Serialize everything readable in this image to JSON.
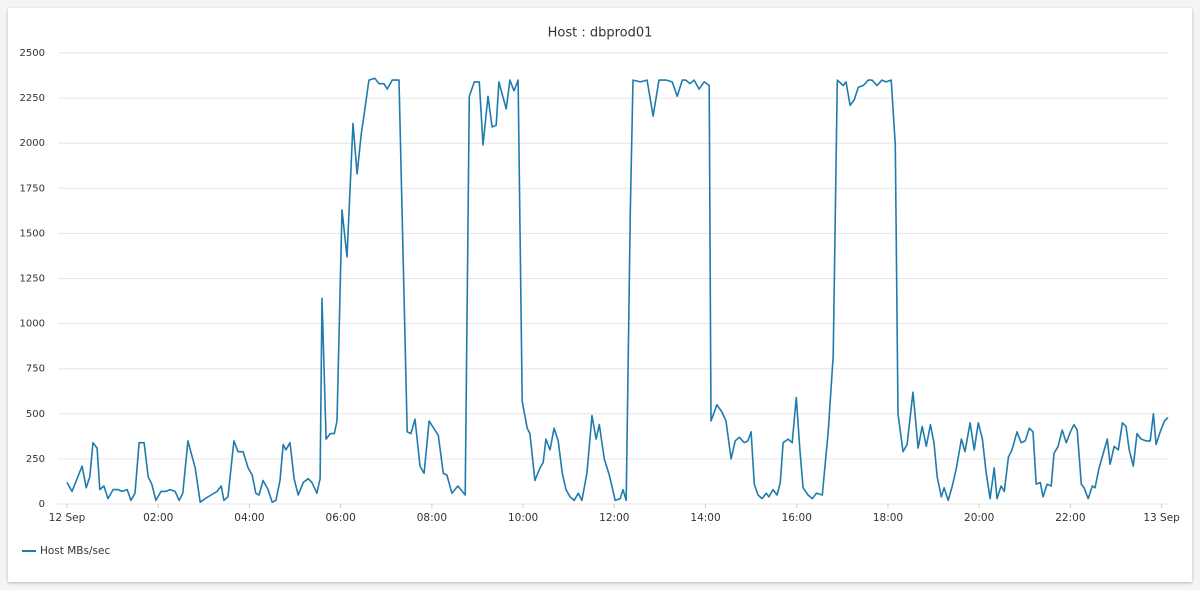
{
  "chart_data": {
    "type": "line",
    "title": "Host : dbprod01",
    "xlim": [
      0,
      24.14
    ],
    "xticks": [
      {
        "value": 0,
        "label": "12 Sep"
      },
      {
        "value": 2,
        "label": "02:00"
      },
      {
        "value": 4,
        "label": "04:00"
      },
      {
        "value": 6,
        "label": "06:00"
      },
      {
        "value": 8,
        "label": "08:00"
      },
      {
        "value": 10,
        "label": "10:00"
      },
      {
        "value": 12,
        "label": "12:00"
      },
      {
        "value": 14,
        "label": "14:00"
      },
      {
        "value": 16,
        "label": "16:00"
      },
      {
        "value": 18,
        "label": "18:00"
      },
      {
        "value": 20,
        "label": "20:00"
      },
      {
        "value": 22,
        "label": "22:00"
      },
      {
        "value": 24,
        "label": "13 Sep"
      }
    ],
    "ylim": [
      0,
      2500
    ],
    "yticks": [
      0,
      250,
      500,
      750,
      1000,
      1250,
      1500,
      1750,
      2000,
      2250,
      2500
    ],
    "grid": true,
    "legend": "bottom-left",
    "x": [
      0,
      0.11,
      0.33,
      0.42,
      0.5,
      0.57,
      0.66,
      0.72,
      0.81,
      0.9,
      1.01,
      1.12,
      1.21,
      1.32,
      1.4,
      1.49,
      1.58,
      1.69,
      1.78,
      1.86,
      1.95,
      2.06,
      2.17,
      2.26,
      2.37,
      2.46,
      2.54,
      2.65,
      2.81,
      2.92,
      3.03,
      3.16,
      3.29,
      3.38,
      3.44,
      3.53,
      3.66,
      3.75,
      3.86,
      3.97,
      4.06,
      4.14,
      4.21,
      4.3,
      4.41,
      4.5,
      4.58,
      4.67,
      4.74,
      4.8,
      4.89,
      4.98,
      5.07,
      5.18,
      5.29,
      5.37,
      5.48,
      5.55,
      5.59,
      5.68,
      5.77,
      5.86,
      5.92,
      6.03,
      6.14,
      6.27,
      6.36,
      6.45,
      6.51,
      6.62,
      6.75,
      6.84,
      6.95,
      7.02,
      7.13,
      7.28,
      7.46,
      7.54,
      7.63,
      7.74,
      7.83,
      7.94,
      8.14,
      8.25,
      8.33,
      8.44,
      8.57,
      8.73,
      8.82,
      8.93,
      9.04,
      9.12,
      9.23,
      9.32,
      9.41,
      9.47,
      9.63,
      9.71,
      9.8,
      9.89,
      9.98,
      10.09,
      10.15,
      10.26,
      10.37,
      10.44,
      10.5,
      10.59,
      10.68,
      10.77,
      10.86,
      10.94,
      11.03,
      11.12,
      11.21,
      11.29,
      11.4,
      11.51,
      11.6,
      11.67,
      11.78,
      11.89,
      12.02,
      12.13,
      12.19,
      12.26,
      12.35,
      12.41,
      12.57,
      12.72,
      12.85,
      12.98,
      13.14,
      13.27,
      13.38,
      13.49,
      13.57,
      13.66,
      13.75,
      13.86,
      13.97,
      14.08,
      14.12,
      14.25,
      14.36,
      14.45,
      14.56,
      14.65,
      14.74,
      14.85,
      14.93,
      15,
      15.07,
      15.15,
      15.24,
      15.33,
      15.39,
      15.48,
      15.57,
      15.64,
      15.7,
      15.81,
      15.9,
      15.99,
      16.07,
      16.14,
      16.25,
      16.34,
      16.43,
      16.56,
      16.69,
      16.8,
      16.89,
      17.02,
      17.08,
      17.17,
      17.26,
      17.35,
      17.46,
      17.57,
      17.65,
      17.76,
      17.87,
      17.96,
      18.07,
      18.16,
      18.22,
      18.33,
      18.42,
      18.55,
      18.66,
      18.75,
      18.84,
      18.93,
      19.01,
      19.08,
      19.17,
      19.23,
      19.32,
      19.41,
      19.5,
      19.61,
      19.69,
      19.8,
      19.89,
      19.98,
      20.07,
      20.15,
      20.24,
      20.33,
      20.39,
      20.48,
      20.55,
      20.64,
      20.72,
      20.83,
      20.92,
      21.01,
      21.1,
      21.18,
      21.25,
      21.34,
      21.4,
      21.49,
      21.58,
      21.64,
      21.73,
      21.82,
      21.91,
      22,
      22.08,
      22.15,
      22.24,
      22.3,
      22.39,
      22.48,
      22.54,
      22.63,
      22.72,
      22.81,
      22.87,
      22.96,
      23.05,
      23.14,
      23.22,
      23.29,
      23.38,
      23.46,
      23.55,
      23.66,
      23.75,
      23.82,
      23.88,
      23.97,
      24.06,
      24.14
    ],
    "series": [
      {
        "name": "Host MBs/sec",
        "color": "#1f7bad",
        "values": [
          120,
          70,
          210,
          90,
          150,
          340,
          310,
          80,
          100,
          30,
          80,
          80,
          70,
          80,
          20,
          60,
          340,
          340,
          150,
          110,
          20,
          70,
          70,
          80,
          70,
          20,
          60,
          350,
          200,
          10,
          30,
          50,
          70,
          100,
          20,
          40,
          350,
          290,
          290,
          200,
          160,
          60,
          50,
          130,
          80,
          10,
          20,
          130,
          330,
          300,
          340,
          140,
          50,
          120,
          140,
          120,
          60,
          140,
          1140,
          360,
          390,
          390,
          460,
          1630,
          1370,
          2110,
          1830,
          2050,
          2150,
          2350,
          2360,
          2330,
          2330,
          2300,
          2350,
          2350,
          400,
          390,
          470,
          210,
          170,
          460,
          380,
          170,
          160,
          60,
          100,
          50,
          2260,
          2340,
          2340,
          1990,
          2260,
          2090,
          2100,
          2340,
          2190,
          2350,
          2290,
          2350,
          570,
          420,
          390,
          130,
          200,
          230,
          360,
          300,
          420,
          350,
          170,
          80,
          40,
          20,
          60,
          20,
          170,
          490,
          360,
          440,
          250,
          160,
          20,
          30,
          80,
          20,
          1620,
          2350,
          2340,
          2350,
          2150,
          2350,
          2350,
          2340,
          2260,
          2350,
          2350,
          2330,
          2350,
          2300,
          2340,
          2320,
          460,
          550,
          510,
          460,
          250,
          350,
          370,
          340,
          350,
          400,
          110,
          50,
          30,
          60,
          40,
          80,
          50,
          120,
          340,
          360,
          340,
          590,
          300,
          90,
          50,
          30,
          60,
          50,
          400,
          820,
          2350,
          2320,
          2340,
          2210,
          2240,
          2310,
          2320,
          2350,
          2350,
          2320,
          2350,
          2340,
          2350,
          1990,
          500,
          290,
          330,
          620,
          310,
          430,
          320,
          440,
          340,
          150,
          40,
          90,
          20,
          100,
          200,
          360,
          290,
          450,
          300,
          450,
          360,
          180,
          30,
          200,
          30,
          100,
          70,
          260,
          300,
          400,
          340,
          350,
          420,
          400,
          110,
          120,
          40,
          110,
          100,
          280,
          320,
          410,
          340,
          400,
          440,
          410,
          110,
          90,
          30,
          100,
          90,
          200,
          280,
          360,
          220,
          320,
          300,
          450,
          430,
          300,
          210,
          390,
          360,
          350,
          350,
          500,
          330,
          400,
          460,
          480
        ]
      }
    ]
  }
}
